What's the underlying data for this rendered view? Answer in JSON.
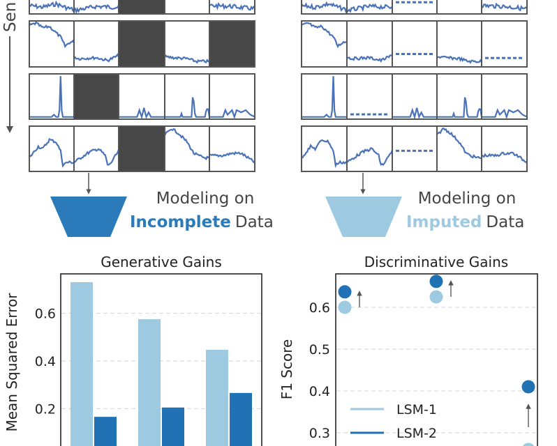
{
  "figure": {
    "axis_label_top": "Sen",
    "left_panel": {
      "line1": "Modeling on",
      "highlight": "Incomplete",
      "rest": "Data",
      "highlight_color": "#2b7bba"
    },
    "right_panel": {
      "line1": "Modeling on",
      "highlight": "Imputed",
      "rest": "Data",
      "highlight_color": "#9ecae1"
    },
    "colors": {
      "signal": "#4a72b8",
      "mask": "#474747",
      "lsm1": "#9ecae1",
      "lsm2": "#2171b5"
    }
  },
  "chart_data": [
    {
      "type": "bar",
      "title": "Generative Gains",
      "xlabel": "",
      "ylabel": "Mean Squared Error",
      "yticks": [
        "0.2",
        "0.4",
        "0.6"
      ],
      "ylim": [
        0,
        0.76
      ],
      "grid": true,
      "categories": [
        "",
        "",
        ""
      ],
      "series": [
        {
          "name": "LSM-1",
          "color": "#9ecae1",
          "values": [
            0.73,
            0.575,
            0.447
          ]
        },
        {
          "name": "LSM-2",
          "color": "#2171b5",
          "values": [
            0.166,
            0.205,
            0.266
          ]
        }
      ]
    },
    {
      "type": "scatter",
      "title": "Discriminative Gains",
      "xlabel": "",
      "ylabel": "F1 Score",
      "yticks": [
        "0.3",
        "0.4",
        "0.5",
        "0.6"
      ],
      "ylim": [
        0.27,
        0.68
      ],
      "grid": true,
      "legend_placement": "lower-left",
      "legend": [
        "LSM-1",
        "LSM-2"
      ],
      "series": [
        {
          "name": "LSM-1",
          "color": "#9ecae1",
          "values": [
            0.6,
            0.625,
            0.26
          ]
        },
        {
          "name": "LSM-2",
          "color": "#2171b5",
          "values": [
            0.637,
            0.662,
            0.41
          ]
        }
      ]
    }
  ]
}
